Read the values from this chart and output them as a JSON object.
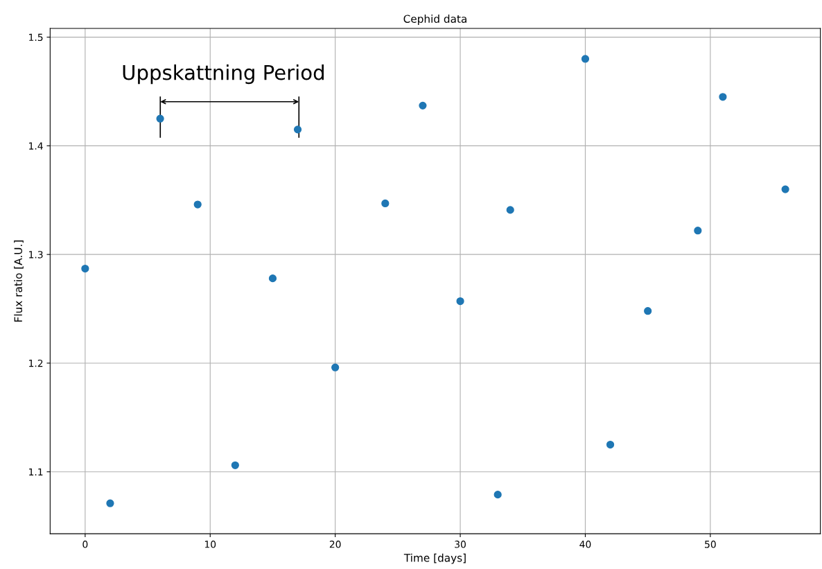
{
  "chart_data": {
    "type": "scatter",
    "title": "Cephid data",
    "xlabel": "Time [days]",
    "ylabel": "Flux ratio [A.U.]",
    "x": [
      0,
      2,
      6,
      9,
      12,
      15,
      17,
      20,
      24,
      27,
      30,
      33,
      34,
      40,
      42,
      45,
      49,
      51,
      56
    ],
    "series": [
      {
        "color": "#1f77b4",
        "values": [
          1.287,
          1.071,
          1.425,
          1.346,
          1.106,
          1.278,
          1.415,
          1.196,
          1.347,
          1.437,
          1.257,
          1.079,
          1.341,
          1.48,
          1.125,
          1.248,
          1.322,
          1.445,
          1.36
        ]
      }
    ],
    "xlim": [
      -2.8,
      58.8
    ],
    "ylim": [
      1.043,
      1.508
    ],
    "xticks": [
      0,
      10,
      20,
      30,
      40,
      50
    ],
    "yticks": [
      1.1,
      1.2,
      1.3,
      1.4,
      1.5
    ],
    "grid": true,
    "marker": "circle",
    "annotations": [
      "Uppskattning Period"
    ]
  }
}
